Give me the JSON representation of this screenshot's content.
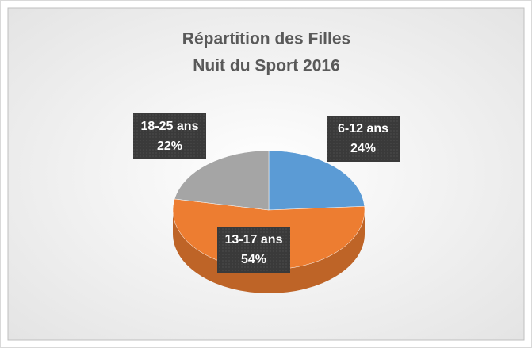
{
  "chart_data": {
    "type": "pie3d",
    "title": [
      "Répartition des Filles",
      "Nuit du Sport 2016"
    ],
    "categories": [
      "6-12 ans",
      "13-17 ans",
      "18-25 ans"
    ],
    "values": [
      24,
      54,
      22
    ],
    "value_labels": [
      "24%",
      "54%",
      "22%"
    ],
    "colors": [
      "#5b9bd5",
      "#ed7d31",
      "#a5a5a5"
    ]
  }
}
